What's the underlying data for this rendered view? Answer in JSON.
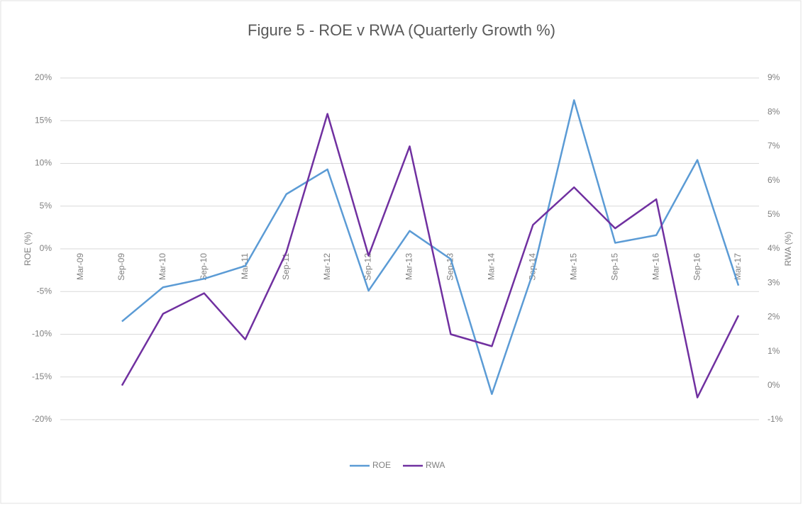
{
  "chart_data": {
    "type": "line",
    "title": "Figure 5 - ROE v RWA (Quarterly Growth %)",
    "categories": [
      "Mar-09",
      "Sep-09",
      "Mar-10",
      "Sep-10",
      "Mar-11",
      "Sep-11",
      "Mar-12",
      "Sep-12",
      "Mar-13",
      "Sep-13",
      "Mar-14",
      "Sep-14",
      "Mar-15",
      "Sep-15",
      "Mar-16",
      "Sep-16",
      "Mar-17"
    ],
    "series": [
      {
        "name": "ROE",
        "color": "#5b9bd5",
        "values": [
          null,
          -8.5,
          -4.5,
          -3.5,
          -2,
          6.4,
          9.3,
          -4.9,
          2.1,
          -1.2,
          -17,
          -2.8,
          17.4,
          0.7,
          1.6,
          10.4,
          -4.3
        ]
      },
      {
        "name": "RWA",
        "color": "#7030a0",
        "axis": "y2",
        "values": [
          null,
          0,
          2.1,
          2.7,
          1.35,
          3.9,
          7.95,
          3.8,
          7.0,
          1.5,
          1.15,
          4.7,
          5.8,
          4.6,
          5.45,
          -0.35,
          2.05
        ]
      }
    ],
    "y_label": "ROE (%)",
    "y2_label": "RWA (%)",
    "ylim": [
      -20,
      20
    ],
    "yticks": [
      {
        "value": -20,
        "label": "-20%"
      },
      {
        "value": -15,
        "label": "-15%"
      },
      {
        "value": -10,
        "label": "-10%"
      },
      {
        "value": -5,
        "label": "-5%"
      },
      {
        "value": 0,
        "label": "0%"
      },
      {
        "value": 5,
        "label": "5%"
      },
      {
        "value": 10,
        "label": "10%"
      },
      {
        "value": 15,
        "label": "15%"
      },
      {
        "value": 20,
        "label": "20%"
      }
    ],
    "y2lim": [
      -1,
      9
    ],
    "y2ticks": [
      {
        "value": -1,
        "label": "-1%"
      },
      {
        "value": 0,
        "label": "0%"
      },
      {
        "value": 1,
        "label": "1%"
      },
      {
        "value": 2,
        "label": "2%"
      },
      {
        "value": 3,
        "label": "3%"
      },
      {
        "value": 4,
        "label": "4%"
      },
      {
        "value": 5,
        "label": "5%"
      },
      {
        "value": 6,
        "label": "6%"
      },
      {
        "value": 7,
        "label": "7%"
      },
      {
        "value": 8,
        "label": "8%"
      },
      {
        "value": 9,
        "label": "9%"
      }
    ],
    "grid": true,
    "legend": "bottom"
  }
}
